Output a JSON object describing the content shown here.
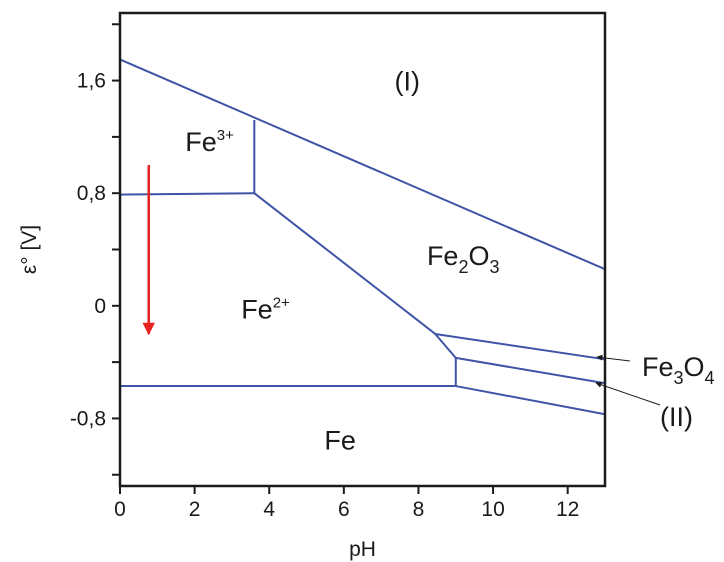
{
  "chart_data": {
    "type": "line",
    "title": "",
    "xlabel": "pH",
    "ylabel": "ε° [V]",
    "xlim": [
      0,
      13
    ],
    "ylim": [
      -1.28,
      2.08
    ],
    "x_ticks": [
      0,
      2,
      4,
      6,
      8,
      10,
      12
    ],
    "x_tick_labels": [
      "0",
      "2",
      "4",
      "6",
      "8",
      "10",
      "12"
    ],
    "y_ticks": [
      -1.2,
      -0.8,
      -0.4,
      0,
      0.4,
      0.8,
      1.2,
      1.6,
      2.0
    ],
    "y_tick_labels": [
      "",
      "-0,8",
      "",
      "0",
      "",
      "0,8",
      "",
      "1,6",
      ""
    ],
    "grid": false,
    "line_color": "#3f54a6",
    "boundaries": [
      {
        "x": [
          0,
          13
        ],
        "y": [
          1.75,
          0.26
        ]
      },
      {
        "x": [
          3.6,
          3.6
        ],
        "y": [
          0.8,
          1.32
        ]
      },
      {
        "x": [
          0,
          3.6
        ],
        "y": [
          0.79,
          0.8
        ]
      },
      {
        "x": [
          3.6,
          8.45
        ],
        "y": [
          0.8,
          -0.2
        ]
      },
      {
        "x": [
          8.45,
          13
        ],
        "y": [
          -0.2,
          -0.38
        ]
      },
      {
        "x": [
          8.45,
          9.0
        ],
        "y": [
          -0.2,
          -0.37
        ]
      },
      {
        "x": [
          9.0,
          9.0
        ],
        "y": [
          -0.37,
          -0.57
        ]
      },
      {
        "x": [
          9.0,
          13
        ],
        "y": [
          -0.37,
          -0.55
        ]
      },
      {
        "x": [
          0,
          9.0
        ],
        "y": [
          -0.57,
          -0.57
        ]
      },
      {
        "x": [
          9.0,
          13
        ],
        "y": [
          -0.57,
          -0.77
        ]
      }
    ],
    "regions": [
      {
        "base": "(I)",
        "x": 7.7,
        "y": 1.53
      },
      {
        "base": "Fe",
        "sup": "3+",
        "x": 2.4,
        "y": 1.1
      },
      {
        "base": "Fe",
        "sub1": "2",
        "mid": "O",
        "sub2": "3",
        "x": 9.2,
        "y": 0.29
      },
      {
        "base": "Fe",
        "sup": "2+",
        "x": 3.9,
        "y": -0.09
      },
      {
        "base": "Fe",
        "x": 5.9,
        "y": -1.02
      }
    ],
    "external_labels": [
      {
        "base": "Fe",
        "sub1": "3",
        "mid": "O",
        "sub2": "4"
      },
      {
        "base": "(II)"
      }
    ],
    "annotations": [
      {
        "type": "arrow",
        "color": "#e8231f",
        "from": {
          "x": 0.77,
          "y": 1.0
        },
        "to": {
          "x": 0.77,
          "y": -0.2
        }
      }
    ]
  }
}
